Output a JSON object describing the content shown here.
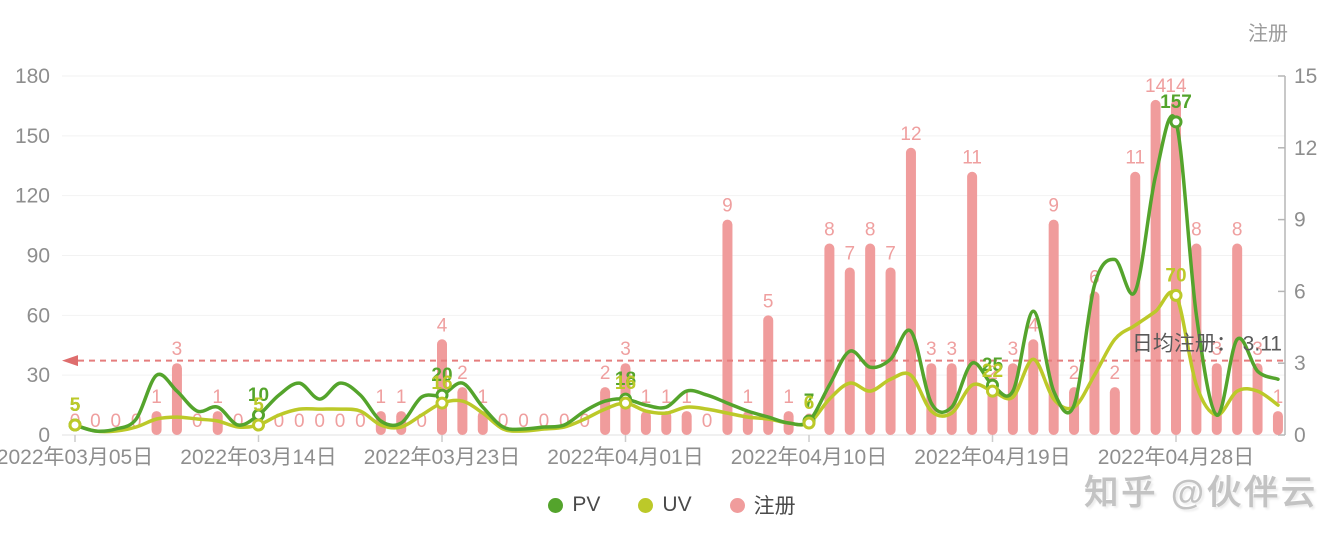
{
  "right_axis_title": "注册",
  "avg_label": "日均注册： 3.11",
  "watermark": "知乎 @伙伴云",
  "legend": [
    {
      "name": "PV",
      "color": "#54a42c"
    },
    {
      "name": "UV",
      "color": "#bcc929"
    },
    {
      "name": "注册",
      "color": "#f09c9c"
    }
  ],
  "colors": {
    "pv": "#54a42c",
    "uv": "#bcc929",
    "bar": "#f09c9c",
    "bar_label": "#ef9f9f",
    "avg_line": "#e57d7d",
    "axis_text": "#8e8e8e",
    "grid": "#f2f2f2",
    "baseline": "#e2e2e2",
    "right_axis_line": "#b5b5b5",
    "avg_text": "#595959"
  },
  "chart_data": {
    "type": "mixed-bar-line",
    "title": "",
    "n_points": 60,
    "x_tick_indices": [
      0,
      9,
      18,
      27,
      36,
      45,
      54
    ],
    "x_tick_labels": [
      "2022年03月05日",
      "2022年03月14日",
      "2022年03月23日",
      "2022年04月01日",
      "2022年04月10日",
      "2022年04月19日",
      "2022年04月28日"
    ],
    "left_axis": {
      "ticks": [
        0,
        30,
        60,
        90,
        120,
        150,
        180
      ],
      "max": 180
    },
    "right_axis": {
      "ticks": [
        0,
        3,
        6,
        9,
        12,
        15
      ],
      "max": 15,
      "title": "注册"
    },
    "legend_position": "bottom",
    "grid": true,
    "series": [
      {
        "name": "PV",
        "type": "line",
        "axis": "left",
        "color": "#54a42c",
        "values": [
          5,
          2,
          3,
          8,
          30,
          22,
          12,
          14,
          5,
          10,
          20,
          26,
          18,
          26,
          20,
          7,
          6,
          19,
          20,
          26,
          14,
          4,
          3,
          4,
          5,
          12,
          17,
          18,
          15,
          14,
          22,
          20,
          16,
          12,
          9,
          6,
          7,
          25,
          42,
          34,
          38,
          52,
          16,
          14,
          36,
          25,
          22,
          62,
          22,
          15,
          75,
          88,
          72,
          130,
          157,
          60,
          10,
          48,
          32,
          28
        ],
        "labeled_points": {
          "0": 5,
          "9": 10,
          "18": 20,
          "27": 18,
          "36": 7,
          "45": 25,
          "54": 157
        }
      },
      {
        "name": "UV",
        "type": "line",
        "axis": "left",
        "color": "#bcc929",
        "values": [
          5,
          2,
          2,
          4,
          8,
          9,
          8,
          7,
          4,
          5,
          10,
          13,
          13,
          13,
          12,
          5,
          4,
          10,
          16,
          17,
          11,
          3,
          2,
          3,
          4,
          8,
          13,
          16,
          12,
          11,
          14,
          13,
          11,
          9,
          8,
          6,
          6,
          18,
          26,
          22,
          28,
          30,
          12,
          11,
          25,
          22,
          19,
          38,
          18,
          14,
          30,
          48,
          55,
          62,
          70,
          25,
          10,
          22,
          22,
          15
        ],
        "labeled_points": {
          "0": 5,
          "9": 5,
          "18": 16,
          "27": 16,
          "36": 6,
          "45": 22,
          "54": 70
        }
      },
      {
        "name": "注册",
        "type": "bar",
        "axis": "right",
        "color": "#f09c9c",
        "values": [
          0,
          0,
          0,
          0,
          1,
          3,
          0,
          1,
          0,
          0,
          0,
          0,
          0,
          0,
          0,
          1,
          1,
          0,
          4,
          2,
          1,
          0,
          0,
          0,
          0,
          0,
          2,
          3,
          1,
          1,
          1,
          0,
          9,
          1,
          5,
          1,
          0,
          8,
          7,
          8,
          7,
          12,
          3,
          3,
          11,
          2,
          3,
          4,
          9,
          2,
          6,
          2,
          11,
          14,
          14,
          8,
          3,
          8,
          3,
          1
        ]
      }
    ],
    "avg_line": {
      "value": 3.11,
      "axis": "right",
      "label": "日均注册： 3.11",
      "style": "dashed",
      "arrow": "left"
    }
  }
}
